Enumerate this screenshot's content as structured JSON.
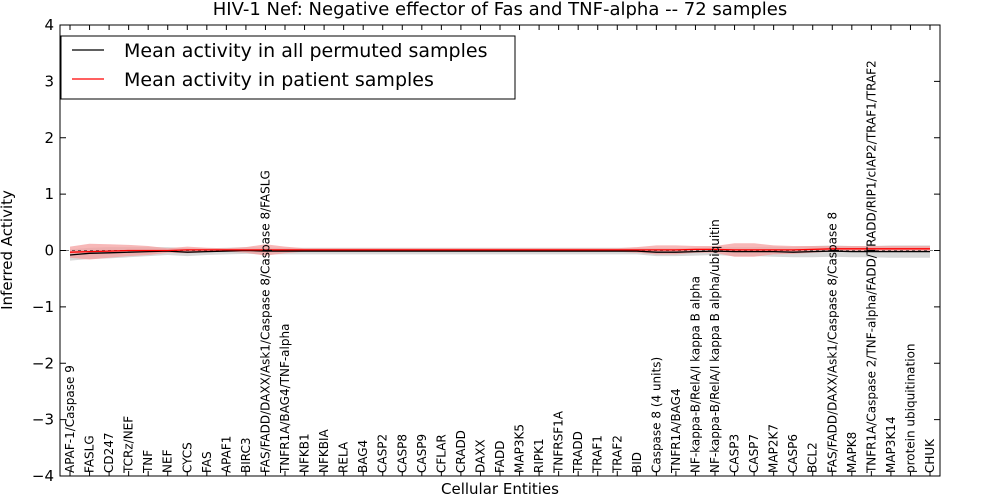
{
  "chart_data": {
    "type": "line",
    "title": "HIV-1 Nef: Negative effector of Fas and TNF-alpha -- 72 samples",
    "xlabel": "Cellular Entities",
    "ylabel": "Inferred Activity",
    "ylim": [
      -4,
      4
    ],
    "yticks": [
      "−4",
      "−3",
      "−2",
      "−1",
      "0",
      "1",
      "2",
      "3",
      "4"
    ],
    "ytick_values": [
      -4,
      -3,
      -2,
      -1,
      0,
      1,
      2,
      3,
      4
    ],
    "legend_position": "top-left",
    "categories": [
      "APAF-1/Caspase 9",
      "FASLG",
      "CD247",
      "TCRz/NEF",
      "TNF",
      "NEF",
      "CYCS",
      "FAS",
      "APAF1",
      "BIRC3",
      "FAS/FADD/DAXX/Ask1/Caspase 8/Caspase 8/FASLG",
      "TNFR1A/BAG4/TNF-alpha",
      "NFKB1",
      "NFKBIA",
      "RELA",
      "BAG4",
      "CASP2",
      "CASP8",
      "CASP9",
      "CFLAR",
      "CRADD",
      "DAXX",
      "FADD",
      "MAP3K5",
      "RIPK1",
      "TNFRSF1A",
      "TRADD",
      "TRAF1",
      "TRAF2",
      "BID",
      "Caspase 8 (4 units)",
      "TNFR1A/BAG4",
      "NF-kappa-B/RelA/I kappa B alpha",
      "NF-kappa-B/RelA/I kappa B alpha/ubiquitin",
      "CASP3",
      "CASP7",
      "MAP2K7",
      "CASP6",
      "BCL2",
      "FAS/FADD/DAXX/Ask1/Caspase 8/Caspase 8",
      "MAPK8",
      "TNFR1A/Caspase 2/TNF-alpha/FADD/TRADD/RIP1/cIAP2/TRAF1/TRAF2",
      "MAP3K14",
      "protein ubiquitination",
      "CHUK"
    ],
    "series": [
      {
        "name": "Mean activity in all permuted samples",
        "color": "#000000",
        "band_color": "#c8c8c8",
        "values": [
          -0.08,
          -0.05,
          -0.04,
          -0.03,
          -0.02,
          -0.01,
          -0.03,
          -0.02,
          -0.01,
          0.0,
          -0.01,
          -0.01,
          -0.01,
          -0.01,
          -0.01,
          -0.01,
          -0.01,
          -0.01,
          -0.01,
          -0.01,
          -0.01,
          -0.01,
          -0.01,
          -0.01,
          -0.01,
          -0.01,
          -0.01,
          -0.01,
          -0.01,
          -0.01,
          -0.03,
          -0.03,
          -0.02,
          -0.01,
          -0.02,
          -0.02,
          -0.02,
          -0.03,
          -0.02,
          -0.01,
          -0.02,
          -0.02,
          -0.02,
          -0.02,
          -0.02
        ],
        "band": [
          0.1,
          0.1,
          0.1,
          0.09,
          0.08,
          0.07,
          0.07,
          0.06,
          0.06,
          0.06,
          0.06,
          0.06,
          0.06,
          0.06,
          0.06,
          0.06,
          0.06,
          0.06,
          0.06,
          0.06,
          0.06,
          0.06,
          0.06,
          0.06,
          0.06,
          0.06,
          0.06,
          0.06,
          0.06,
          0.06,
          0.07,
          0.07,
          0.07,
          0.07,
          0.08,
          0.08,
          0.09,
          0.09,
          0.1,
          0.1,
          0.1,
          0.1,
          0.11,
          0.11,
          0.11
        ]
      },
      {
        "name": "Mean activity in patient samples",
        "color": "#ff0000",
        "band_color": "#f4a0a0",
        "values": [
          -0.03,
          -0.02,
          -0.01,
          0.0,
          0.0,
          0.0,
          0.01,
          0.01,
          0.01,
          0.01,
          0.01,
          0.01,
          0.01,
          0.01,
          0.01,
          0.01,
          0.01,
          0.01,
          0.01,
          0.01,
          0.01,
          0.01,
          0.01,
          0.01,
          0.01,
          0.01,
          0.01,
          0.01,
          0.01,
          0.01,
          0.01,
          0.01,
          0.02,
          0.02,
          0.01,
          0.01,
          0.01,
          0.01,
          0.02,
          0.03,
          0.03,
          0.03,
          0.03,
          0.03,
          0.03
        ],
        "band": [
          0.1,
          0.14,
          0.12,
          0.1,
          0.08,
          0.04,
          0.06,
          0.04,
          0.03,
          0.05,
          0.1,
          0.06,
          0.03,
          0.03,
          0.03,
          0.03,
          0.03,
          0.03,
          0.03,
          0.03,
          0.03,
          0.03,
          0.03,
          0.03,
          0.03,
          0.03,
          0.03,
          0.03,
          0.03,
          0.05,
          0.08,
          0.08,
          0.06,
          0.06,
          0.12,
          0.12,
          0.08,
          0.07,
          0.06,
          0.05,
          0.05,
          0.05,
          0.05,
          0.05,
          0.05
        ]
      }
    ]
  }
}
